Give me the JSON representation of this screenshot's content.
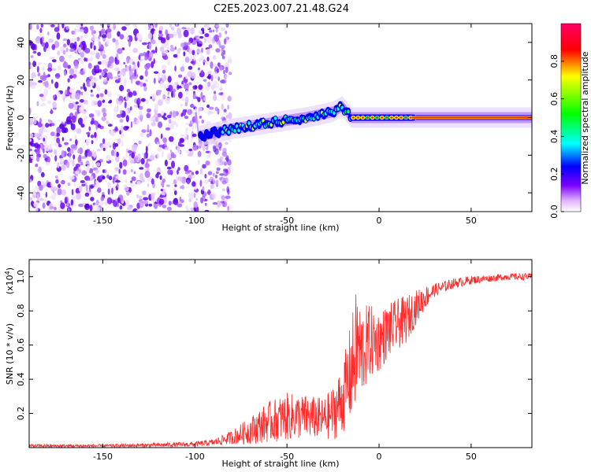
{
  "title": "C2E5.2023.007.21.48.G24",
  "chart_data": [
    {
      "type": "heatmap",
      "xlabel": "Height of straight line (km)",
      "ylabel": "Frequency (Hz)",
      "xlim": [
        -190,
        83
      ],
      "ylim": [
        -50,
        50
      ],
      "xticks": [
        -150,
        -100,
        -50,
        0,
        50
      ],
      "yticks": [
        -40,
        -20,
        0,
        20,
        40
      ],
      "noise_region_end_km": -85,
      "signal_track": {
        "description_points_x": [
          -98,
          -80,
          -60,
          -40,
          -25,
          -20,
          -15,
          0,
          20,
          83
        ],
        "description_points_freq": [
          -10,
          -6,
          -3,
          0,
          3,
          6,
          0,
          0,
          0,
          0
        ]
      },
      "colorbar": {
        "label": "Normalized spectral amplitude",
        "ticks": [
          0.0,
          0.2,
          0.4,
          0.6,
          0.8
        ],
        "range": [
          0.0,
          1.0
        ],
        "colors": [
          "#ffffff",
          "#6600ff",
          "#0000ff",
          "#00ffff",
          "#00ff00",
          "#ffff00",
          "#ff0000",
          "#ff0066"
        ]
      }
    },
    {
      "type": "line",
      "xlabel": "Height of straight line (km)",
      "ylabel": "SNR (10 * v/v)",
      "yscale_label": "(x10^4)",
      "yscale_base": "(x10",
      "yscale_exp": "4",
      "yscale_close": ")",
      "xlim": [
        -190,
        83
      ],
      "ylim": [
        0.0,
        1.1
      ],
      "xticks": [
        -150,
        -100,
        -50,
        0,
        50
      ],
      "yticks": [
        0.2,
        0.4,
        0.6,
        0.8,
        1.0
      ],
      "color": "#ff2a2a",
      "series": [
        {
          "name": "SNR",
          "x": [
            -190,
            -150,
            -120,
            -100,
            -90,
            -80,
            -70,
            -60,
            -50,
            -40,
            -30,
            -25,
            -20,
            -15,
            -12,
            -10,
            -5,
            0,
            5,
            10,
            15,
            20,
            25,
            30,
            40,
            50,
            60,
            70,
            83
          ],
          "y": [
            0.01,
            0.01,
            0.015,
            0.02,
            0.03,
            0.06,
            0.1,
            0.15,
            0.18,
            0.18,
            0.17,
            0.2,
            0.28,
            0.45,
            0.6,
            0.55,
            0.62,
            0.62,
            0.68,
            0.72,
            0.75,
            0.82,
            0.88,
            0.92,
            0.96,
            0.98,
            0.99,
            1.0,
            1.0
          ],
          "noise_amplitude": [
            0.01,
            0.01,
            0.012,
            0.015,
            0.02,
            0.04,
            0.08,
            0.12,
            0.14,
            0.13,
            0.12,
            0.16,
            0.2,
            0.3,
            0.35,
            0.28,
            0.22,
            0.18,
            0.16,
            0.15,
            0.14,
            0.1,
            0.07,
            0.04,
            0.03,
            0.025,
            0.02,
            0.02,
            0.02
          ]
        }
      ]
    }
  ]
}
